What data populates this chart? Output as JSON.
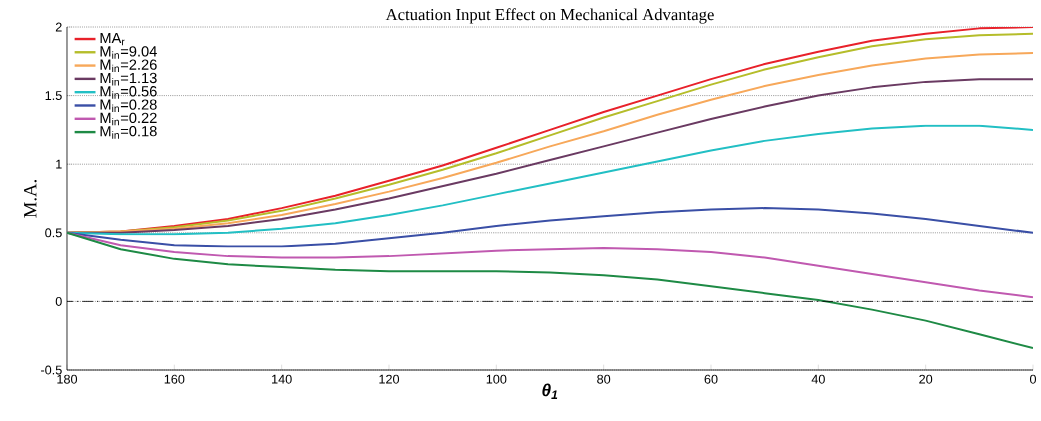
{
  "chart_data": {
    "type": "line",
    "title": "Actuation Input Effect on Mechanical Advantage",
    "xlabel": "θ$_{1}$",
    "ylabel": "M.A.",
    "x": [
      180,
      170,
      160,
      150,
      140,
      130,
      120,
      110,
      100,
      90,
      80,
      70,
      60,
      50,
      40,
      30,
      20,
      10,
      0
    ],
    "series": [
      {
        "name": "MA$_{r}$",
        "color": "#e8212a",
        "values": [
          0.5,
          0.51,
          0.55,
          0.6,
          0.68,
          0.77,
          0.88,
          0.99,
          1.12,
          1.25,
          1.38,
          1.5,
          1.62,
          1.73,
          1.82,
          1.9,
          1.95,
          1.99,
          2.0
        ]
      },
      {
        "name": "M$_{in}$=9.04",
        "color": "#b5bd2a",
        "values": [
          0.5,
          0.51,
          0.54,
          0.59,
          0.66,
          0.75,
          0.85,
          0.96,
          1.08,
          1.21,
          1.34,
          1.46,
          1.58,
          1.69,
          1.78,
          1.86,
          1.91,
          1.94,
          1.95
        ]
      },
      {
        "name": "M$_{in}$=2.26",
        "color": "#f7a85a",
        "values": [
          0.5,
          0.51,
          0.53,
          0.57,
          0.63,
          0.71,
          0.8,
          0.9,
          1.01,
          1.13,
          1.24,
          1.36,
          1.47,
          1.57,
          1.65,
          1.72,
          1.77,
          1.8,
          1.81
        ]
      },
      {
        "name": "M$_{in}$=1.13",
        "color": "#6a3a62",
        "values": [
          0.5,
          0.5,
          0.52,
          0.55,
          0.6,
          0.67,
          0.75,
          0.84,
          0.93,
          1.03,
          1.13,
          1.23,
          1.33,
          1.42,
          1.5,
          1.56,
          1.6,
          1.62,
          1.62
        ]
      },
      {
        "name": "M$_{in}$=0.56",
        "color": "#22bfc4",
        "values": [
          0.5,
          0.49,
          0.49,
          0.5,
          0.53,
          0.57,
          0.63,
          0.7,
          0.78,
          0.86,
          0.94,
          1.02,
          1.1,
          1.17,
          1.22,
          1.26,
          1.28,
          1.28,
          1.25
        ]
      },
      {
        "name": "M$_{in}$=0.28",
        "color": "#3a4fa6",
        "values": [
          0.5,
          0.45,
          0.41,
          0.4,
          0.4,
          0.42,
          0.46,
          0.5,
          0.55,
          0.59,
          0.62,
          0.65,
          0.67,
          0.68,
          0.67,
          0.64,
          0.6,
          0.55,
          0.5
        ]
      },
      {
        "name": "M$_{in}$=0.22",
        "color": "#c059b0",
        "values": [
          0.5,
          0.41,
          0.36,
          0.33,
          0.32,
          0.32,
          0.33,
          0.35,
          0.37,
          0.38,
          0.39,
          0.38,
          0.36,
          0.32,
          0.26,
          0.2,
          0.14,
          0.08,
          0.03
        ]
      },
      {
        "name": "M$_{in}$=0.18",
        "color": "#1e8a45",
        "values": [
          0.5,
          0.38,
          0.31,
          0.27,
          0.25,
          0.23,
          0.22,
          0.22,
          0.22,
          0.21,
          0.19,
          0.16,
          0.11,
          0.06,
          0.01,
          -0.06,
          -0.14,
          -0.24,
          -0.34
        ]
      }
    ],
    "xlim": [
      180,
      0
    ],
    "ylim": [
      -0.5,
      2
    ],
    "xticks": [
      180,
      160,
      140,
      120,
      100,
      80,
      60,
      40,
      20,
      0
    ],
    "yticks": [
      -0.5,
      0,
      0.5,
      1,
      1.5,
      2
    ],
    "grid": "y",
    "legend": "top left",
    "marker": "none",
    "line_style": "solid",
    "ref_lines": [
      {
        "axis": "y",
        "value": 0,
        "color": "#000000",
        "line_style": "dashed"
      }
    ]
  }
}
